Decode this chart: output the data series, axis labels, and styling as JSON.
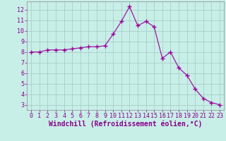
{
  "x": [
    0,
    1,
    2,
    3,
    4,
    5,
    6,
    7,
    8,
    9,
    10,
    11,
    12,
    13,
    14,
    15,
    16,
    17,
    18,
    19,
    20,
    21,
    22,
    23
  ],
  "y": [
    8.0,
    8.0,
    8.2,
    8.2,
    8.2,
    8.3,
    8.4,
    8.5,
    8.5,
    8.6,
    9.7,
    10.9,
    12.3,
    10.5,
    10.9,
    10.4,
    7.4,
    8.0,
    6.5,
    5.8,
    4.5,
    3.6,
    3.2,
    3.0
  ],
  "line_color": "#990099",
  "marker": "+",
  "marker_size": 4,
  "background_color": "#c8eee8",
  "grid_color": "#a0c8c0",
  "xlabel": "Windchill (Refroidissement éolien,°C)",
  "xlim": [
    -0.5,
    23.5
  ],
  "ylim": [
    2.5,
    12.8
  ],
  "xticks": [
    0,
    1,
    2,
    3,
    4,
    5,
    6,
    7,
    8,
    9,
    10,
    11,
    12,
    13,
    14,
    15,
    16,
    17,
    18,
    19,
    20,
    21,
    22,
    23
  ],
  "yticks": [
    3,
    4,
    5,
    6,
    7,
    8,
    9,
    10,
    11,
    12
  ],
  "tick_label_fontsize": 6.0,
  "xlabel_fontsize": 7.0,
  "label_color": "#880088"
}
